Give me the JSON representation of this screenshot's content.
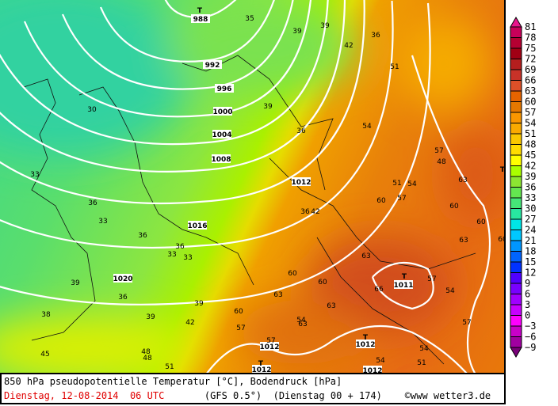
{
  "map": {
    "title": "850 hPa pseudopotentielle Temperatur [°C], Bodendruck [hPa]",
    "date": "Dienstag, 12-08-2014",
    "time": "06 UTC",
    "model": "(GFS 0.5°)",
    "run": "(Dienstag 00 + 174)",
    "copyright": "©",
    "site": "www wetter3.de",
    "isobar_labels": [
      "988",
      "992",
      "996",
      "1000",
      "1004",
      "1008",
      "1012",
      "1016",
      "1020",
      "1012",
      "1012",
      "1012",
      "1012",
      "1011"
    ],
    "low_marker": "T",
    "temp_labels": [
      "35",
      "39",
      "36",
      "39",
      "30",
      "33",
      "36",
      "33",
      "36",
      "33",
      "33",
      "36",
      "39",
      "38",
      "39",
      "42",
      "42",
      "45",
      "48",
      "51",
      "54",
      "51",
      "48",
      "54",
      "57",
      "54",
      "51",
      "63",
      "60",
      "57",
      "60",
      "63",
      "60",
      "60",
      "57",
      "54",
      "63",
      "66",
      "63",
      "57",
      "60",
      "54",
      "54",
      "57",
      "39",
      "36",
      "36",
      "39",
      "42",
      "36",
      "60",
      "63",
      "57",
      "51",
      "48",
      "60",
      "63"
    ]
  },
  "colorbar": {
    "labels": [
      "81",
      "78",
      "75",
      "72",
      "69",
      "66",
      "63",
      "60",
      "57",
      "54",
      "51",
      "48",
      "45",
      "42",
      "39",
      "36",
      "33",
      "30",
      "27",
      "24",
      "21",
      "18",
      "15",
      "12",
      "9",
      "6",
      "3",
      "0",
      "−3",
      "−6",
      "−9"
    ],
    "colors": [
      "#e8148c",
      "#c8005a",
      "#b40032",
      "#a00014",
      "#b41e1e",
      "#c83228",
      "#dc5028",
      "#e66400",
      "#e67800",
      "#fa9600",
      "#faaa00",
      "#fac800",
      "#ffdc00",
      "#ffff00",
      "#aaff00",
      "#8ce632",
      "#64e650",
      "#46e678",
      "#28e6a0",
      "#00e6e6",
      "#00c8ff",
      "#0096ff",
      "#0064ff",
      "#0032ff",
      "#5000ff",
      "#7800ff",
      "#a000ff",
      "#c800ff",
      "#ff00ff",
      "#c800c8",
      "#a000a0",
      "#780078"
    ]
  }
}
